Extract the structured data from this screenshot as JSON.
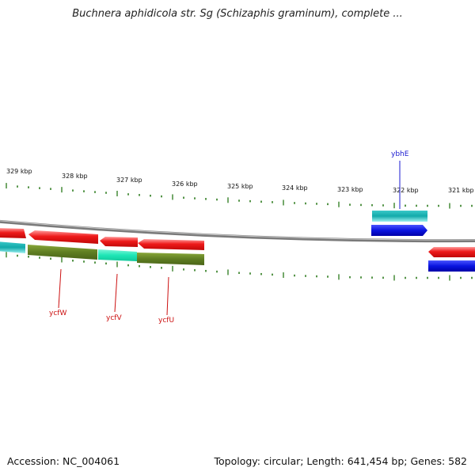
{
  "title": "Buchnera aphidicola str. Sg (Schizaphis graminum), complete ...",
  "footer": {
    "accession": "Accession: NC_004061",
    "stats": "Topology: circular; Length: 641,454 bp; Genes: 582"
  },
  "ruler_labels": [
    "329 kbp",
    "328 kbp",
    "327 kbp",
    "326 kbp",
    "325 kbp",
    "324 kbp",
    "323 kbp",
    "322 kbp",
    "321 kbp"
  ],
  "gene_labels": {
    "ybhE": "ybhE",
    "ycfW": "ycfW",
    "ycfV": "ycfV",
    "ycfU": "ycfU"
  },
  "colors": {
    "red": "#e8101a",
    "cyan": "#1ab4b4",
    "olive": "#6b8a2a",
    "aqua": "#22e8b8",
    "blue": "#0a14e0",
    "tick_green": "#2a7a1a",
    "label_blue": "#1a1ad0",
    "label_red": "#cc1010"
  }
}
